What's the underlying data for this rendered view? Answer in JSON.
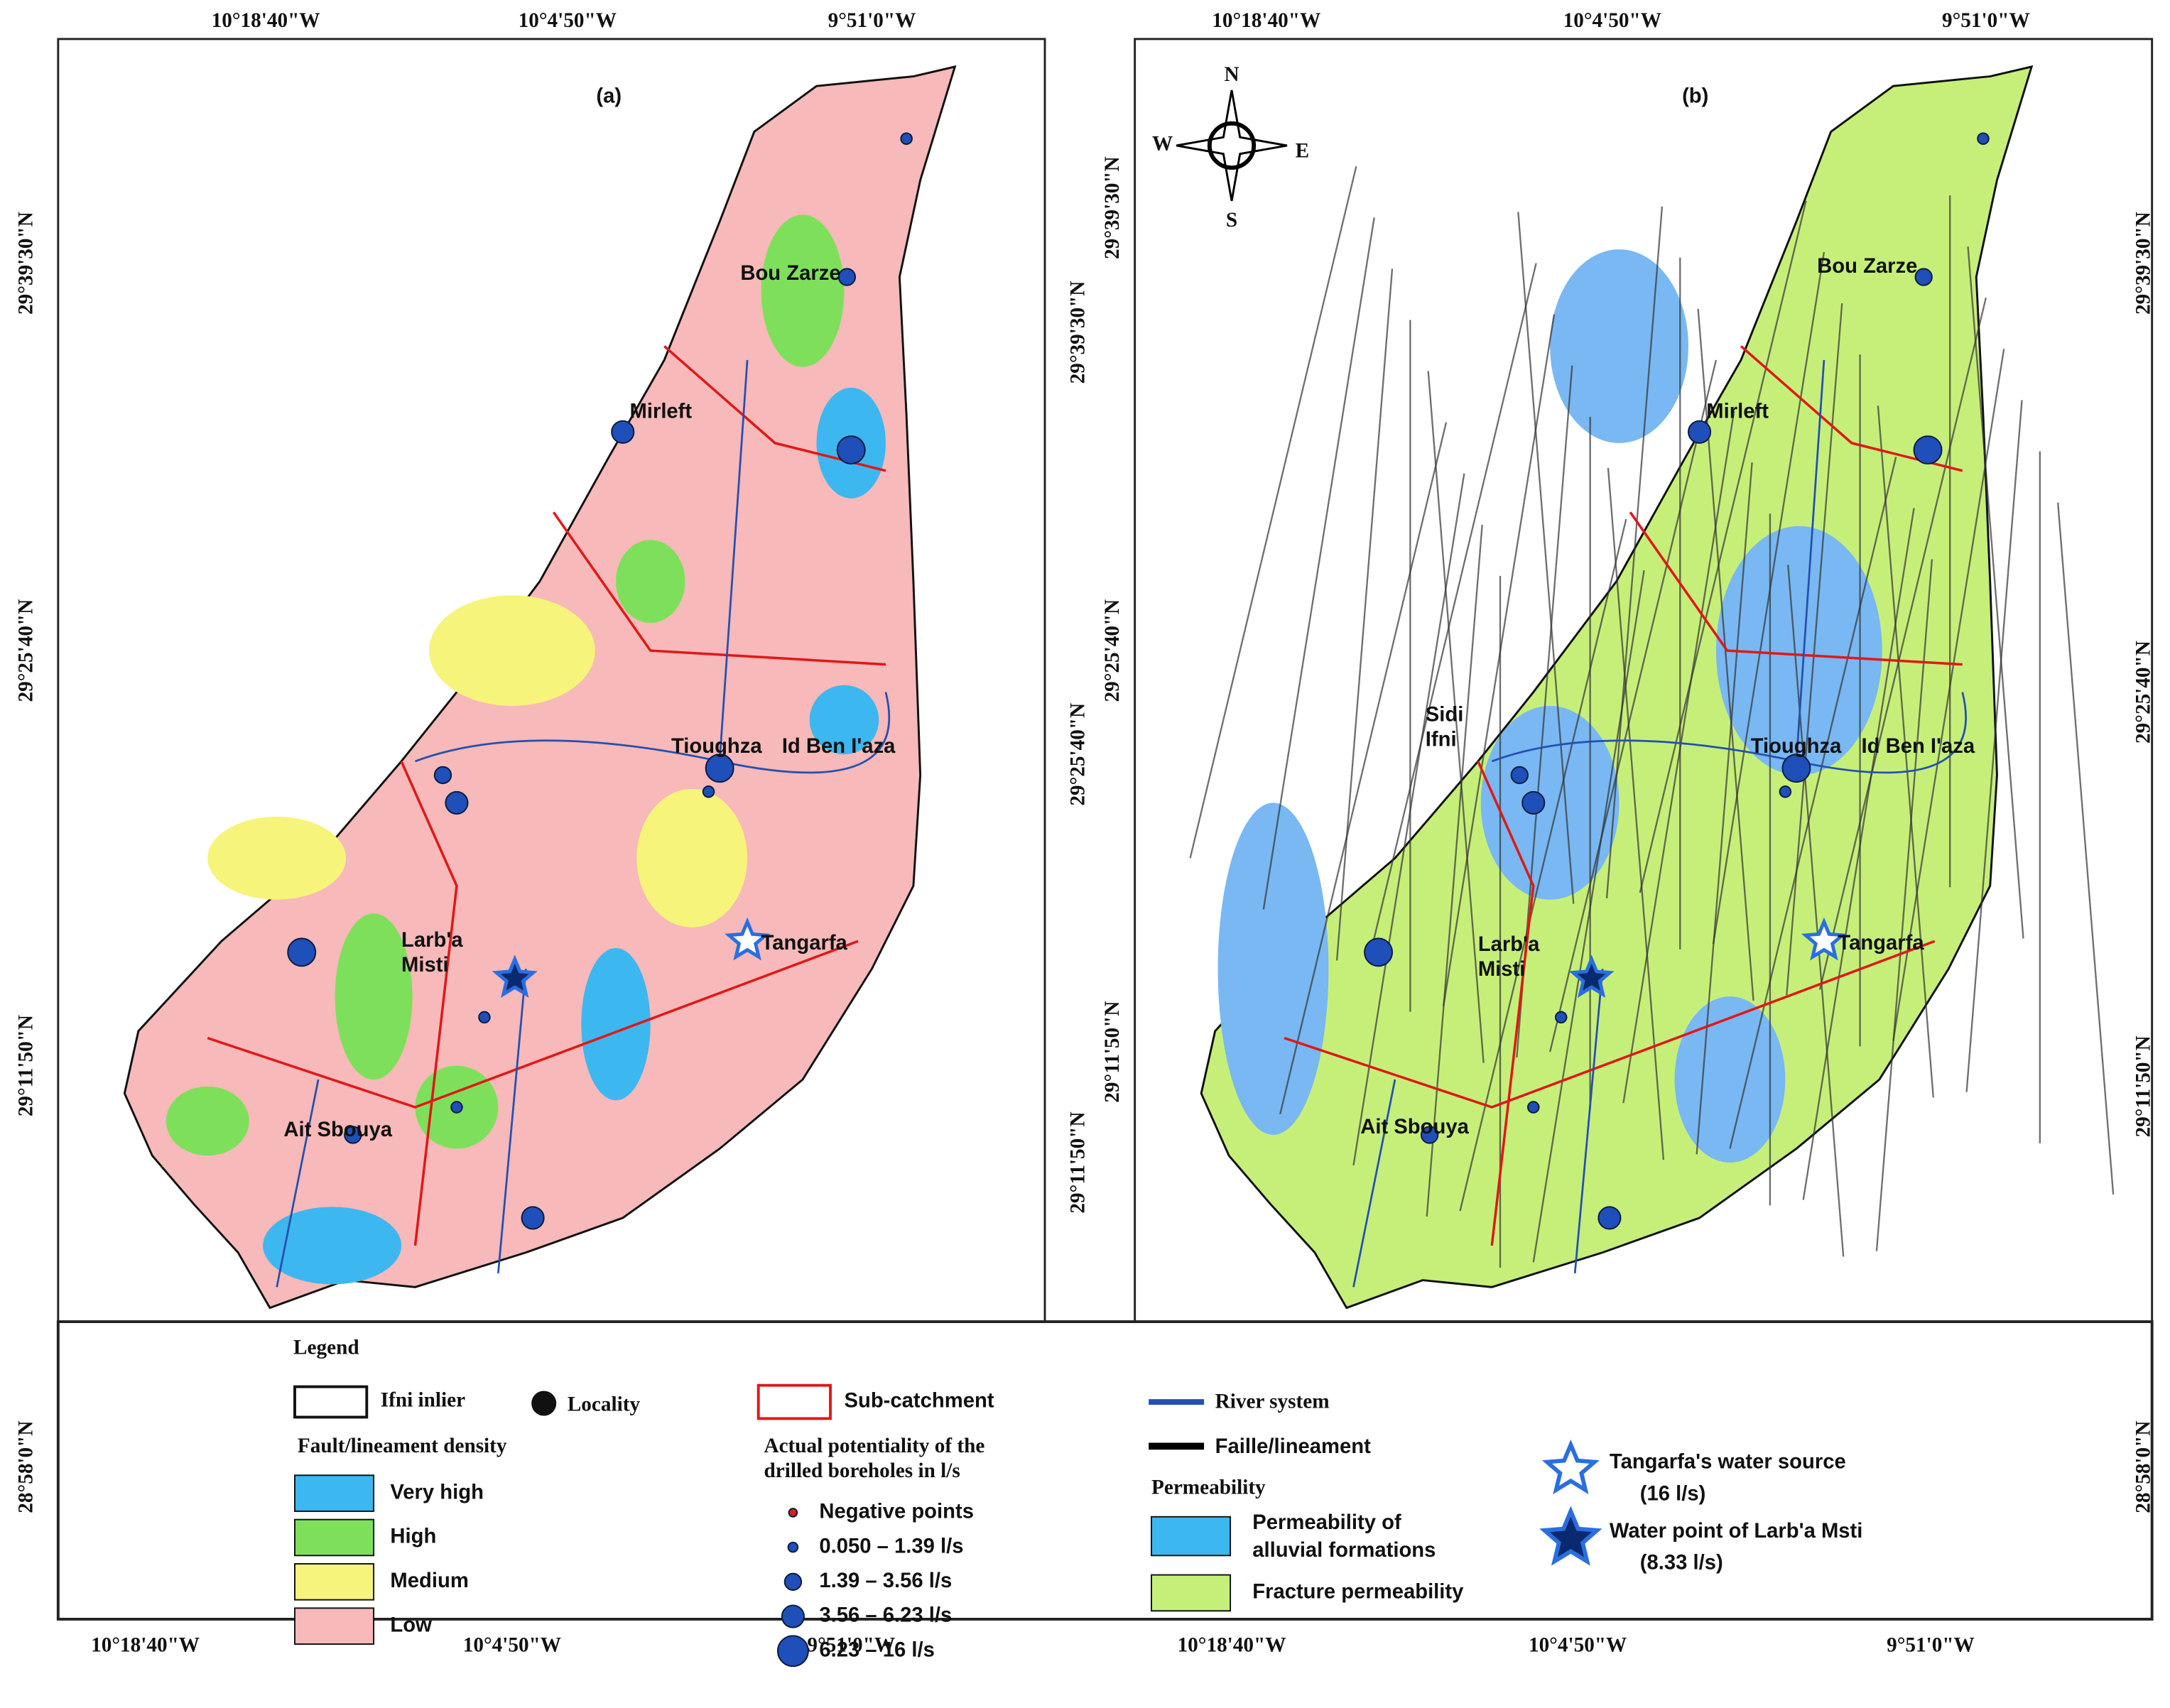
{
  "coordinates": {
    "top": [
      "10°18'40\"W",
      "10°4'50\"W",
      "9°51'0\"W"
    ],
    "bottom": [
      "10°18'40\"W",
      "10°4'50\"W",
      "9°51'0\"W"
    ],
    "lat": [
      "29°39'30\"N",
      "29°25'40\"N",
      "29°11'50\"N"
    ],
    "legend_lat": "28°58'0\"N"
  },
  "panels": [
    {
      "label": "(a)",
      "places": [
        "Bou Zarze",
        "Mirleft",
        "Tioughza",
        "Id Ben I'aza",
        "Larb'a",
        "Misti",
        "Tangarfa",
        "Ait Sbouya"
      ]
    },
    {
      "label": "(b)",
      "places": [
        "Bou Zarze",
        "Mirleft",
        "Sidi",
        "Ifni",
        "Tioughza",
        "Id Ben I'aza",
        "Larb'a",
        "Misti",
        "Tangarfa",
        "Ait Sbouya"
      ],
      "compass": [
        "N",
        "S",
        "W",
        "E"
      ]
    }
  ],
  "legend": {
    "title": "Legend",
    "inlier": "Ifni inlier",
    "locality": "Locality",
    "density_title": "Fault/lineament density",
    "density": [
      "Very high",
      "High",
      "Medium",
      "Low"
    ],
    "subcatchment": "Sub-catchment",
    "boreholes_title": [
      "Actual potentiality of the",
      "drilled boreholes in l/s"
    ],
    "boreholes": [
      "Negative points",
      "0.050 – 1.39 l/s",
      "1.39 – 3.56 l/s",
      "3.56 – 6.23 l/s",
      "6.23 – 16 l/s"
    ],
    "river": "River system",
    "fault": "Faille/lineament",
    "permeability_title": "Permeability",
    "permeability": [
      [
        "Permeability of",
        "alluvial formations"
      ],
      [
        "Fracture permeability"
      ]
    ],
    "tangarfa": [
      "Tangarfa's water source",
      "(16 l/s)"
    ],
    "larba": [
      "Water point of Larb'a Msti",
      "(8.33 l/s)"
    ]
  }
}
